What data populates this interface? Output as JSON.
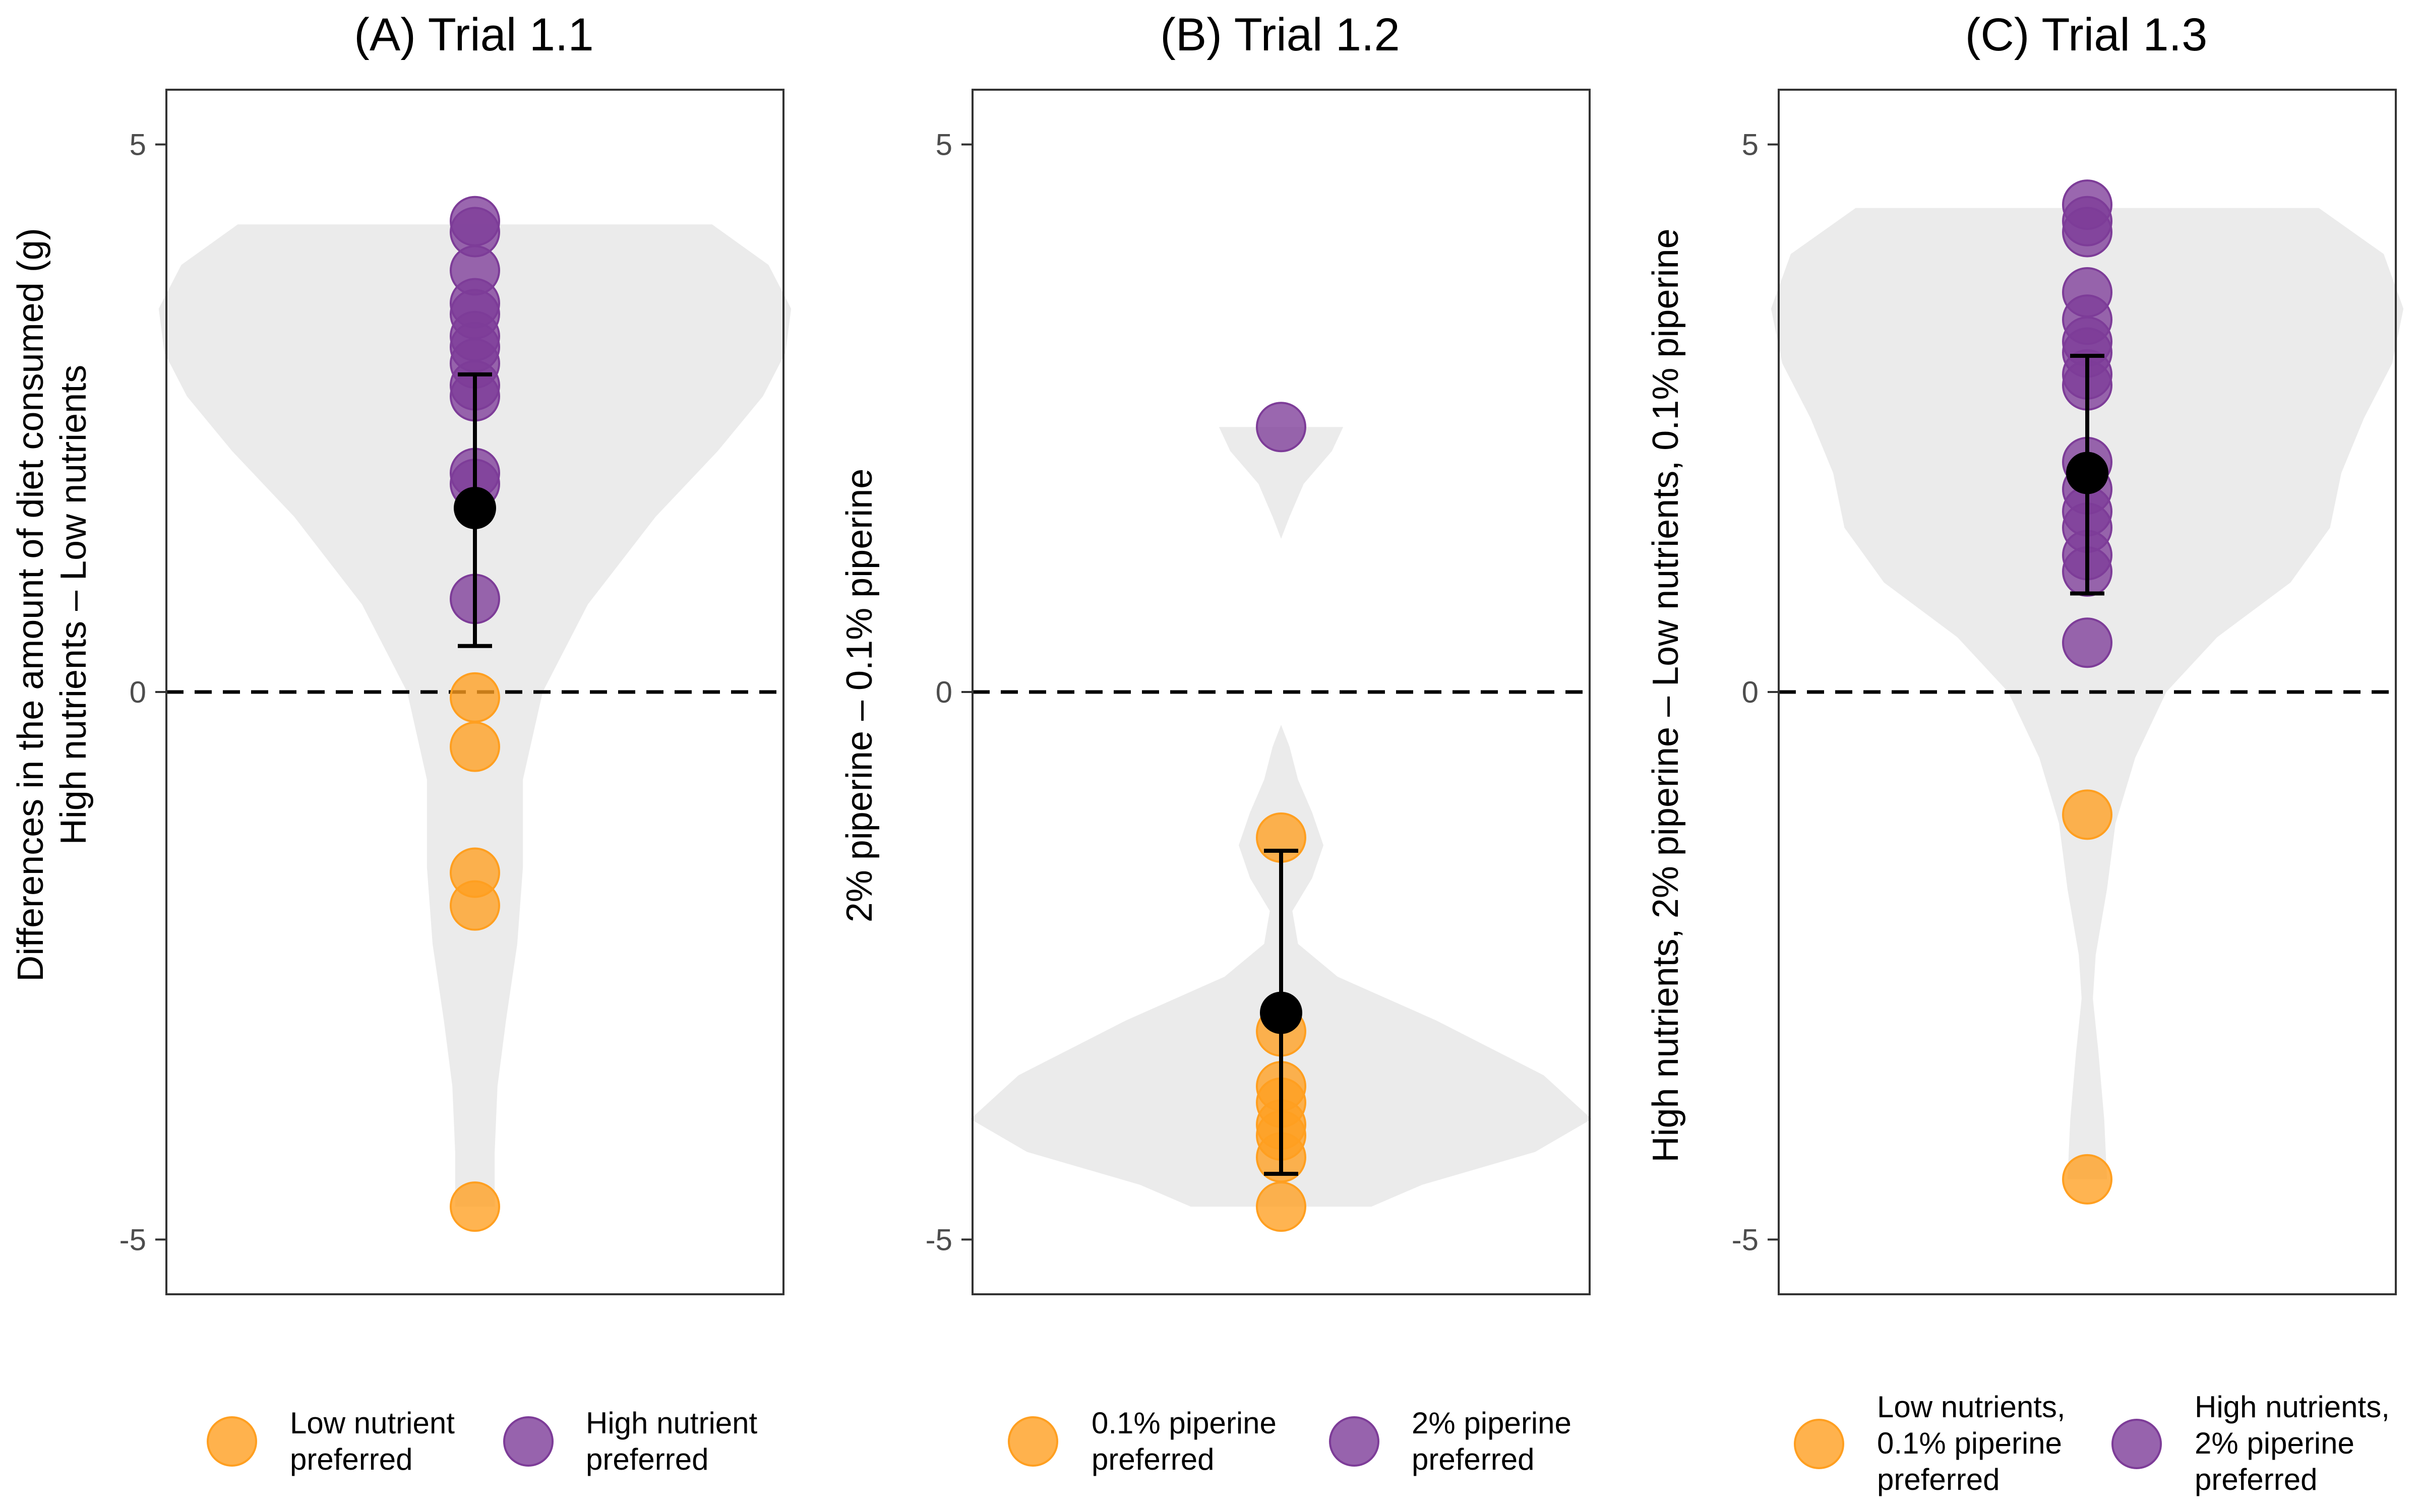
{
  "colors": {
    "low_preferred": "#FF9F20",
    "high_preferred": "#7D3C98",
    "violin_fill": "#EBEBEB",
    "mean_point": "#000000",
    "axis": "#333333"
  },
  "chart_data": [
    {
      "type": "scatter",
      "panel": "A",
      "title": "(A) Trial 1.1",
      "ylabel_line1": "Differences in the amount of diet consumed (g)",
      "ylabel_line2": "High nutrients – Low nutrients",
      "ylim": [
        -5.5,
        5.5
      ],
      "yticks": [
        {
          "value": 5,
          "label": "5"
        },
        {
          "value": 0,
          "label": "0"
        },
        {
          "value": -5,
          "label": "-5"
        }
      ],
      "reference_line": 0,
      "mean": 1.68,
      "error_bar": [
        0.42,
        2.9
      ],
      "violin_range": [
        -4.7,
        4.27
      ],
      "violin_shape": [
        [
          4.27,
          0.84
        ],
        [
          3.9,
          1.04
        ],
        [
          3.5,
          1.12
        ],
        [
          3.1,
          1.1
        ],
        [
          2.7,
          1.02
        ],
        [
          2.2,
          0.86
        ],
        [
          1.6,
          0.64
        ],
        [
          0.8,
          0.4
        ],
        [
          0.0,
          0.24
        ],
        [
          -0.8,
          0.17
        ],
        [
          -1.6,
          0.17
        ],
        [
          -2.3,
          0.15
        ],
        [
          -3.0,
          0.11
        ],
        [
          -3.6,
          0.08
        ],
        [
          -4.2,
          0.07
        ],
        [
          -4.7,
          0.07
        ]
      ],
      "points": [
        {
          "y": 4.3,
          "group": "high"
        },
        {
          "y": 4.2,
          "group": "high"
        },
        {
          "y": 3.85,
          "group": "high"
        },
        {
          "y": 3.55,
          "group": "high"
        },
        {
          "y": 3.45,
          "group": "high"
        },
        {
          "y": 3.25,
          "group": "high"
        },
        {
          "y": 3.15,
          "group": "high"
        },
        {
          "y": 3.0,
          "group": "high"
        },
        {
          "y": 2.8,
          "group": "high"
        },
        {
          "y": 2.7,
          "group": "high"
        },
        {
          "y": 2.0,
          "group": "high"
        },
        {
          "y": 1.9,
          "group": "high"
        },
        {
          "y": 0.85,
          "group": "high"
        },
        {
          "y": -0.05,
          "group": "low"
        },
        {
          "y": -0.5,
          "group": "low"
        },
        {
          "y": -1.65,
          "group": "low"
        },
        {
          "y": -1.95,
          "group": "low"
        },
        {
          "y": -4.7,
          "group": "low"
        }
      ],
      "legend": [
        {
          "group": "low",
          "line1": "Low nutrient",
          "line2": "preferred"
        },
        {
          "group": "high",
          "line1": "High nutrient",
          "line2": "preferred"
        }
      ]
    },
    {
      "type": "scatter",
      "panel": "B",
      "title": "(B) Trial 1.2",
      "ylabel_line1": "2% piperine – 0.1% piperine",
      "ylabel_line2": "",
      "ylim": [
        -5.5,
        5.5
      ],
      "yticks": [
        {
          "value": 5,
          "label": "5"
        },
        {
          "value": 0,
          "label": "0"
        },
        {
          "value": -5,
          "label": "-5"
        }
      ],
      "reference_line": 0,
      "mean": -2.93,
      "error_bar": [
        -4.4,
        -1.45
      ],
      "violin_range": [
        -4.7,
        2.42
      ],
      "violin_shape": [
        [
          2.42,
          0.22
        ],
        [
          2.2,
          0.18
        ],
        [
          1.9,
          0.08
        ],
        [
          1.6,
          0.03
        ],
        [
          1.4,
          0.0
        ],
        [
          -0.3,
          0.0
        ],
        [
          -0.5,
          0.03
        ],
        [
          -0.8,
          0.06
        ],
        [
          -1.1,
          0.11
        ],
        [
          -1.4,
          0.15
        ],
        [
          -1.7,
          0.11
        ],
        [
          -2.0,
          0.04
        ],
        [
          -2.3,
          0.06
        ],
        [
          -2.6,
          0.2
        ],
        [
          -3.0,
          0.55
        ],
        [
          -3.5,
          0.93
        ],
        [
          -3.9,
          1.1
        ],
        [
          -4.2,
          0.9
        ],
        [
          -4.5,
          0.5
        ],
        [
          -4.7,
          0.32
        ]
      ],
      "points": [
        {
          "y": 2.42,
          "group": "high"
        },
        {
          "y": -1.33,
          "group": "low"
        },
        {
          "y": -3.1,
          "group": "low"
        },
        {
          "y": -3.6,
          "group": "low"
        },
        {
          "y": -3.75,
          "group": "low"
        },
        {
          "y": -3.95,
          "group": "low"
        },
        {
          "y": -4.05,
          "group": "low"
        },
        {
          "y": -4.25,
          "group": "low"
        },
        {
          "y": -4.7,
          "group": "low"
        }
      ],
      "legend": [
        {
          "group": "low",
          "line1": "0.1% piperine",
          "line2": "preferred"
        },
        {
          "group": "high",
          "line1": "2% piperine",
          "line2": "preferred"
        }
      ]
    },
    {
      "type": "scatter",
      "panel": "C",
      "title": "(C) Trial 1.3",
      "ylabel_line1": "High nutrients, 2% piperine – Low nutrients, 0.1% piperine",
      "ylabel_line2": "",
      "ylim": [
        -5.5,
        5.5
      ],
      "yticks": [
        {
          "value": 5,
          "label": "5"
        },
        {
          "value": 0,
          "label": "0"
        },
        {
          "value": -5,
          "label": "-5"
        }
      ],
      "reference_line": 0,
      "mean": 2.0,
      "error_bar": [
        0.9,
        3.07
      ],
      "violin_range": [
        -4.45,
        4.42
      ],
      "violin_shape": [
        [
          4.42,
          0.82
        ],
        [
          4.0,
          1.05
        ],
        [
          3.5,
          1.12
        ],
        [
          3.0,
          1.08
        ],
        [
          2.5,
          0.98
        ],
        [
          2.0,
          0.9
        ],
        [
          1.5,
          0.86
        ],
        [
          1.0,
          0.72
        ],
        [
          0.5,
          0.46
        ],
        [
          0.0,
          0.28
        ],
        [
          -0.6,
          0.17
        ],
        [
          -1.2,
          0.1
        ],
        [
          -1.8,
          0.07
        ],
        [
          -2.4,
          0.03
        ],
        [
          -2.8,
          0.02
        ],
        [
          -3.3,
          0.04
        ],
        [
          -3.9,
          0.06
        ],
        [
          -4.45,
          0.07
        ]
      ],
      "points": [
        {
          "y": 4.45,
          "group": "high"
        },
        {
          "y": 4.3,
          "group": "high"
        },
        {
          "y": 4.2,
          "group": "high"
        },
        {
          "y": 3.65,
          "group": "high"
        },
        {
          "y": 3.4,
          "group": "high"
        },
        {
          "y": 3.2,
          "group": "high"
        },
        {
          "y": 3.1,
          "group": "high"
        },
        {
          "y": 2.9,
          "group": "high"
        },
        {
          "y": 2.8,
          "group": "high"
        },
        {
          "y": 2.1,
          "group": "high"
        },
        {
          "y": 1.85,
          "group": "high"
        },
        {
          "y": 1.65,
          "group": "high"
        },
        {
          "y": 1.5,
          "group": "high"
        },
        {
          "y": 1.25,
          "group": "high"
        },
        {
          "y": 1.1,
          "group": "high"
        },
        {
          "y": 0.45,
          "group": "high"
        },
        {
          "y": -1.12,
          "group": "low"
        },
        {
          "y": -4.45,
          "group": "low"
        }
      ],
      "legend": [
        {
          "group": "low",
          "line1": "Low nutrients,",
          "line2": "0.1% piperine",
          "line3": "preferred"
        },
        {
          "group": "high",
          "line1": "High nutrients,",
          "line2": "2% piperine",
          "line3": "preferred"
        }
      ]
    }
  ]
}
